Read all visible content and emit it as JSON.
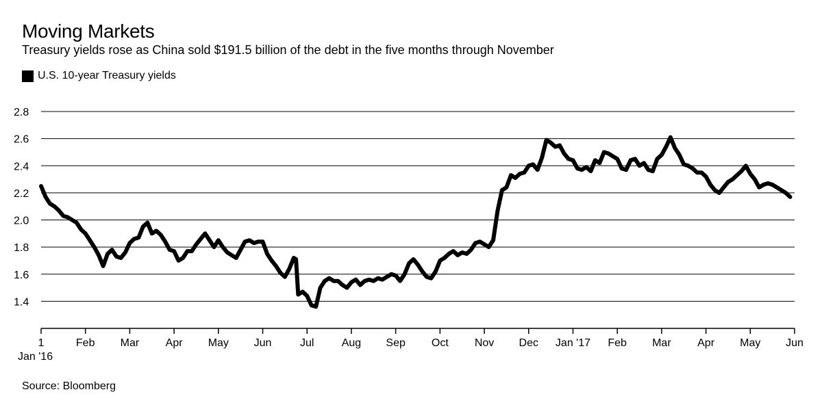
{
  "chart_data": {
    "type": "line",
    "title": "Moving Markets",
    "subtitle": "Treasury yields rose as China sold $191.5 billion of the debt in the five months through November",
    "legend": [
      "U.S. 10-year Treasury yields"
    ],
    "source": "Source: Bloomberg",
    "ylim": [
      1.2,
      2.8
    ],
    "yticks": [
      "1.4",
      "1.6",
      "1.8",
      "2.0",
      "2.2",
      "2.4",
      "2.6",
      "2.8"
    ],
    "xticks": [
      {
        "label": "1",
        "sublabel": "Jan '16",
        "month": 0
      },
      {
        "label": "Feb",
        "month": 1
      },
      {
        "label": "Mar",
        "month": 2
      },
      {
        "label": "Apr",
        "month": 3
      },
      {
        "label": "May",
        "month": 4
      },
      {
        "label": "Jun",
        "month": 5
      },
      {
        "label": "Jul",
        "month": 6
      },
      {
        "label": "Aug",
        "month": 7
      },
      {
        "label": "Sep",
        "month": 8
      },
      {
        "label": "Oct",
        "month": 9
      },
      {
        "label": "Nov",
        "month": 10
      },
      {
        "label": "Dec",
        "month": 11
      },
      {
        "label": "Jan '17",
        "month": 12
      },
      {
        "label": "Feb",
        "month": 13
      },
      {
        "label": "Mar",
        "month": 14
      },
      {
        "label": "Apr",
        "month": 15
      },
      {
        "label": "May",
        "month": 16
      },
      {
        "label": "Jun",
        "month": 17
      }
    ],
    "series": [
      {
        "name": "U.S. 10-year Treasury yields",
        "color": "#000000",
        "points": [
          [
            0.0,
            2.25
          ],
          [
            0.1,
            2.17
          ],
          [
            0.2,
            2.12
          ],
          [
            0.3,
            2.1
          ],
          [
            0.4,
            2.07
          ],
          [
            0.5,
            2.03
          ],
          [
            0.6,
            2.02
          ],
          [
            0.7,
            2.0
          ],
          [
            0.8,
            1.98
          ],
          [
            0.9,
            1.93
          ],
          [
            1.0,
            1.9
          ],
          [
            1.1,
            1.85
          ],
          [
            1.2,
            1.8
          ],
          [
            1.3,
            1.74
          ],
          [
            1.4,
            1.66
          ],
          [
            1.5,
            1.75
          ],
          [
            1.6,
            1.78
          ],
          [
            1.7,
            1.73
          ],
          [
            1.8,
            1.72
          ],
          [
            1.9,
            1.76
          ],
          [
            2.0,
            1.83
          ],
          [
            2.1,
            1.86
          ],
          [
            2.2,
            1.87
          ],
          [
            2.3,
            1.95
          ],
          [
            2.4,
            1.98
          ],
          [
            2.5,
            1.9
          ],
          [
            2.6,
            1.92
          ],
          [
            2.7,
            1.89
          ],
          [
            2.8,
            1.84
          ],
          [
            2.9,
            1.78
          ],
          [
            3.0,
            1.77
          ],
          [
            3.1,
            1.7
          ],
          [
            3.2,
            1.72
          ],
          [
            3.3,
            1.77
          ],
          [
            3.4,
            1.77
          ],
          [
            3.5,
            1.82
          ],
          [
            3.6,
            1.86
          ],
          [
            3.7,
            1.9
          ],
          [
            3.8,
            1.85
          ],
          [
            3.9,
            1.8
          ],
          [
            4.0,
            1.85
          ],
          [
            4.1,
            1.8
          ],
          [
            4.2,
            1.76
          ],
          [
            4.3,
            1.74
          ],
          [
            4.4,
            1.72
          ],
          [
            4.5,
            1.78
          ],
          [
            4.6,
            1.84
          ],
          [
            4.7,
            1.85
          ],
          [
            4.8,
            1.83
          ],
          [
            4.9,
            1.84
          ],
          [
            5.0,
            1.84
          ],
          [
            5.1,
            1.75
          ],
          [
            5.2,
            1.7
          ],
          [
            5.3,
            1.66
          ],
          [
            5.4,
            1.61
          ],
          [
            5.5,
            1.58
          ],
          [
            5.6,
            1.64
          ],
          [
            5.7,
            1.72
          ],
          [
            5.75,
            1.71
          ],
          [
            5.8,
            1.45
          ],
          [
            5.9,
            1.47
          ],
          [
            6.0,
            1.44
          ],
          [
            6.1,
            1.37
          ],
          [
            6.2,
            1.36
          ],
          [
            6.3,
            1.5
          ],
          [
            6.4,
            1.55
          ],
          [
            6.5,
            1.57
          ],
          [
            6.6,
            1.55
          ],
          [
            6.7,
            1.55
          ],
          [
            6.8,
            1.52
          ],
          [
            6.9,
            1.5
          ],
          [
            7.0,
            1.54
          ],
          [
            7.1,
            1.56
          ],
          [
            7.2,
            1.52
          ],
          [
            7.3,
            1.55
          ],
          [
            7.4,
            1.56
          ],
          [
            7.5,
            1.55
          ],
          [
            7.6,
            1.57
          ],
          [
            7.7,
            1.56
          ],
          [
            7.8,
            1.58
          ],
          [
            7.9,
            1.6
          ],
          [
            8.0,
            1.59
          ],
          [
            8.1,
            1.55
          ],
          [
            8.2,
            1.6
          ],
          [
            8.3,
            1.68
          ],
          [
            8.4,
            1.71
          ],
          [
            8.5,
            1.67
          ],
          [
            8.6,
            1.62
          ],
          [
            8.7,
            1.58
          ],
          [
            8.8,
            1.57
          ],
          [
            8.9,
            1.62
          ],
          [
            9.0,
            1.7
          ],
          [
            9.1,
            1.72
          ],
          [
            9.2,
            1.75
          ],
          [
            9.3,
            1.77
          ],
          [
            9.4,
            1.74
          ],
          [
            9.5,
            1.76
          ],
          [
            9.6,
            1.75
          ],
          [
            9.7,
            1.78
          ],
          [
            9.8,
            1.83
          ],
          [
            9.9,
            1.84
          ],
          [
            10.0,
            1.82
          ],
          [
            10.1,
            1.8
          ],
          [
            10.2,
            1.85
          ],
          [
            10.3,
            2.07
          ],
          [
            10.4,
            2.22
          ],
          [
            10.5,
            2.24
          ],
          [
            10.6,
            2.33
          ],
          [
            10.7,
            2.31
          ],
          [
            10.8,
            2.34
          ],
          [
            10.9,
            2.35
          ],
          [
            11.0,
            2.4
          ],
          [
            11.1,
            2.41
          ],
          [
            11.2,
            2.37
          ],
          [
            11.3,
            2.46
          ],
          [
            11.4,
            2.59
          ],
          [
            11.5,
            2.57
          ],
          [
            11.6,
            2.54
          ],
          [
            11.7,
            2.55
          ],
          [
            11.8,
            2.49
          ],
          [
            11.9,
            2.45
          ],
          [
            12.0,
            2.44
          ],
          [
            12.1,
            2.38
          ],
          [
            12.2,
            2.37
          ],
          [
            12.3,
            2.39
          ],
          [
            12.4,
            2.36
          ],
          [
            12.5,
            2.44
          ],
          [
            12.6,
            2.42
          ],
          [
            12.7,
            2.5
          ],
          [
            12.8,
            2.49
          ],
          [
            12.9,
            2.47
          ],
          [
            13.0,
            2.45
          ],
          [
            13.1,
            2.38
          ],
          [
            13.2,
            2.37
          ],
          [
            13.3,
            2.44
          ],
          [
            13.4,
            2.45
          ],
          [
            13.5,
            2.4
          ],
          [
            13.6,
            2.42
          ],
          [
            13.7,
            2.37
          ],
          [
            13.8,
            2.36
          ],
          [
            13.9,
            2.45
          ],
          [
            14.0,
            2.48
          ],
          [
            14.1,
            2.54
          ],
          [
            14.2,
            2.61
          ],
          [
            14.3,
            2.53
          ],
          [
            14.4,
            2.48
          ],
          [
            14.5,
            2.41
          ],
          [
            14.6,
            2.4
          ],
          [
            14.7,
            2.38
          ],
          [
            14.8,
            2.35
          ],
          [
            14.9,
            2.35
          ],
          [
            15.0,
            2.32
          ],
          [
            15.1,
            2.26
          ],
          [
            15.2,
            2.22
          ],
          [
            15.3,
            2.2
          ],
          [
            15.4,
            2.24
          ],
          [
            15.5,
            2.28
          ],
          [
            15.6,
            2.3
          ],
          [
            15.7,
            2.33
          ],
          [
            15.8,
            2.36
          ],
          [
            15.9,
            2.4
          ],
          [
            16.0,
            2.34
          ],
          [
            16.1,
            2.3
          ],
          [
            16.2,
            2.24
          ],
          [
            16.3,
            2.26
          ],
          [
            16.4,
            2.27
          ],
          [
            16.5,
            2.26
          ],
          [
            16.6,
            2.24
          ],
          [
            16.7,
            2.22
          ],
          [
            16.8,
            2.2
          ],
          [
            16.9,
            2.17
          ]
        ]
      }
    ]
  }
}
